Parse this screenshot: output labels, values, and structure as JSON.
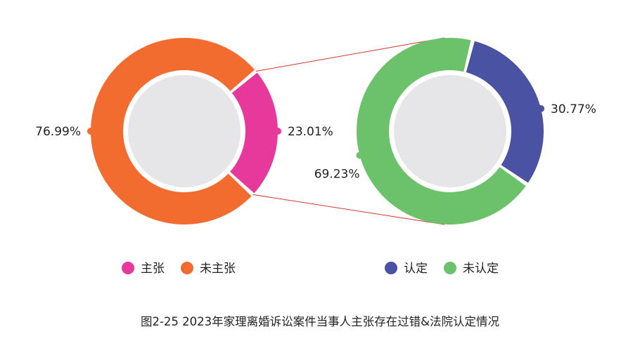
{
  "chart_data": [
    {
      "type": "pie",
      "style": "donut",
      "slices": [
        {
          "label": "主张",
          "value": 23.01,
          "value_label": "23.01%",
          "color": "#E6399B"
        },
        {
          "label": "未主张",
          "value": 76.99,
          "value_label": "76.99%",
          "color": "#F26C30"
        }
      ],
      "legend": [
        "主张",
        "未主张"
      ]
    },
    {
      "type": "pie",
      "style": "donut",
      "slices": [
        {
          "label": "认定",
          "value": 30.77,
          "value_label": "30.77%",
          "color": "#4A52A3"
        },
        {
          "label": "未认定",
          "value": 69.23,
          "value_label": "69.23%",
          "color": "#6CC26A"
        }
      ],
      "legend": [
        "认定",
        "未认定"
      ]
    }
  ],
  "caption": "图2-25  2023年家理离婚诉讼案件当事人主张存在过错&法院认定情况",
  "colors": {
    "connector": "#D9342B",
    "center": "#E6E6E8"
  }
}
